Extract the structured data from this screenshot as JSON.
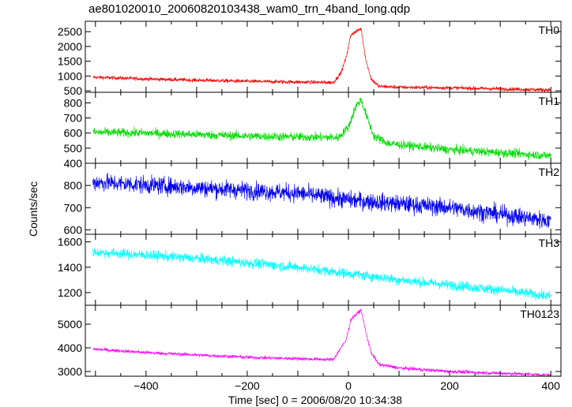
{
  "chart_data": {
    "type": "line",
    "title": "ae801020010_20060820103438_wam0_trn_4band_long.qdp",
    "xlabel": "Time [sec] 0 = 2006/08/20 10:34:38",
    "ylabel": "Counts/sec",
    "xlim": [
      -520,
      420
    ],
    "xticks": [
      -400,
      -200,
      0,
      200,
      400
    ],
    "grid": false,
    "panels": [
      {
        "name": "TH0",
        "color": "#ff0000",
        "ylim": [
          450,
          2850
        ],
        "yticks": [
          500,
          1000,
          1500,
          2000,
          2500
        ],
        "noise": 60,
        "shape": {
          "x": [
            -505,
            -400,
            -200,
            -30,
            -15,
            -5,
            5,
            15,
            25,
            35,
            45,
            60,
            100,
            200,
            400
          ],
          "y": [
            960,
            900,
            820,
            780,
            1100,
            1600,
            2400,
            2500,
            2600,
            1500,
            900,
            650,
            620,
            600,
            530
          ]
        }
      },
      {
        "name": "TH1",
        "color": "#00dd00",
        "ylim": [
          400,
          870
        ],
        "yticks": [
          400,
          500,
          600,
          700,
          800
        ],
        "noise": 28,
        "shape": {
          "x": [
            -505,
            -400,
            -200,
            -20,
            0,
            15,
            25,
            35,
            50,
            80,
            200,
            400
          ],
          "y": [
            605,
            600,
            580,
            570,
            640,
            780,
            820,
            720,
            580,
            530,
            490,
            450
          ]
        }
      },
      {
        "name": "TH2",
        "color": "#0000ee",
        "ylim": [
          580,
          900
        ],
        "yticks": [
          600,
          700,
          800
        ],
        "noise": 38,
        "shape": {
          "x": [
            -505,
            -300,
            -100,
            0,
            200,
            400
          ],
          "y": [
            815,
            790,
            765,
            735,
            700,
            640
          ]
        }
      },
      {
        "name": "TH3",
        "color": "#00ffff",
        "ylim": [
          1100,
          1660
        ],
        "yticks": [
          1200,
          1400,
          1600
        ],
        "noise": 38,
        "shape": {
          "x": [
            -505,
            -300,
            -100,
            100,
            300,
            400
          ],
          "y": [
            1520,
            1470,
            1400,
            1300,
            1220,
            1170
          ]
        }
      },
      {
        "name": "TH0123",
        "color": "#ff00ff",
        "ylim": [
          2800,
          5800
        ],
        "yticks": [
          3000,
          4000,
          5000
        ],
        "noise": 70,
        "shape": {
          "x": [
            -505,
            -400,
            -200,
            -30,
            -15,
            -5,
            5,
            15,
            25,
            35,
            45,
            60,
            100,
            200,
            400
          ],
          "y": [
            3950,
            3800,
            3600,
            3500,
            4000,
            4300,
            5200,
            5400,
            5600,
            4600,
            3800,
            3300,
            3150,
            3000,
            2850
          ]
        }
      }
    ]
  }
}
